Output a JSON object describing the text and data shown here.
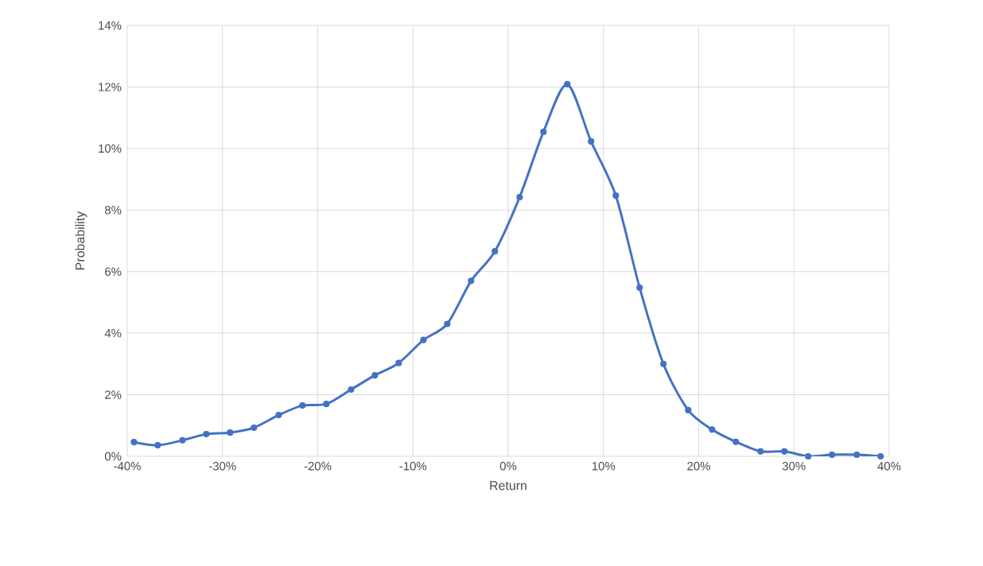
{
  "chart_data": {
    "type": "line",
    "xlabel": "Return",
    "ylabel": "Probability",
    "x": [
      -39.3,
      -36.8,
      -34.2,
      -31.7,
      -29.2,
      -26.7,
      -24.1,
      -21.6,
      -19.1,
      -16.5,
      -14.0,
      -11.5,
      -8.9,
      -6.4,
      -3.9,
      -1.4,
      1.2,
      3.7,
      6.2,
      8.7,
      11.3,
      13.8,
      16.3,
      18.9,
      21.4,
      23.9,
      26.5,
      29.0,
      31.5,
      34.0,
      36.6,
      39.1
    ],
    "series": [
      {
        "color": "#4472c4",
        "values": [
          0.46,
          0.36,
          0.52,
          0.72,
          0.77,
          0.93,
          1.34,
          1.65,
          1.7,
          2.17,
          2.63,
          3.03,
          3.78,
          4.3,
          5.7,
          6.66,
          8.42,
          10.54,
          12.09,
          10.23,
          8.47,
          5.48,
          3.0,
          1.5,
          0.87,
          0.47,
          0.16,
          0.16,
          0,
          0.05,
          0.05,
          0
        ]
      }
    ],
    "xlim": [
      -40,
      40
    ],
    "ylim": [
      0,
      14
    ],
    "xticks": [
      {
        "value": -40,
        "label": "-40%"
      },
      {
        "value": -30,
        "label": "-30%"
      },
      {
        "value": -20,
        "label": "-20%"
      },
      {
        "value": -10,
        "label": "-10%"
      },
      {
        "value": 0,
        "label": "0%"
      },
      {
        "value": 10,
        "label": "10%"
      },
      {
        "value": 20,
        "label": "20%"
      },
      {
        "value": 30,
        "label": "30%"
      },
      {
        "value": 40,
        "label": "40%"
      }
    ],
    "yticks": [
      {
        "value": 0,
        "label": "0%"
      },
      {
        "value": 2,
        "label": "2%"
      },
      {
        "value": 4,
        "label": "4%"
      },
      {
        "value": 6,
        "label": "6%"
      },
      {
        "value": 8,
        "label": "8%"
      },
      {
        "value": 10,
        "label": "10%"
      },
      {
        "value": 12,
        "label": "12%"
      },
      {
        "value": 14,
        "label": "14%"
      }
    ],
    "grid": true,
    "marker": "circle",
    "line_style": "solid"
  }
}
